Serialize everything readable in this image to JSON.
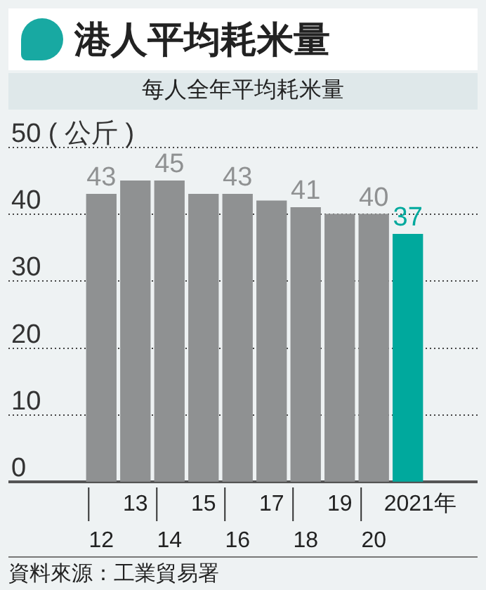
{
  "chart_data": {
    "type": "bar",
    "title": "港人平均耗米量",
    "subtitle": "每人全年平均耗米量",
    "categories": [
      "12",
      "13",
      "14",
      "15",
      "16",
      "17",
      "18",
      "19",
      "20",
      "2021年"
    ],
    "values": [
      43,
      45,
      45,
      43,
      43,
      42,
      41,
      40,
      40,
      37
    ],
    "colors": [
      "#8f9192",
      "#8f9192",
      "#8f9192",
      "#8f9192",
      "#8f9192",
      "#8f9192",
      "#8f9192",
      "#8f9192",
      "#8f9192",
      "#00a99d"
    ],
    "value_labels": [
      "43",
      null,
      "45",
      null,
      "43",
      null,
      "41",
      null,
      "40",
      "37"
    ],
    "ylim": [
      0,
      50
    ],
    "yticks": [
      0,
      10,
      20,
      30,
      40,
      {
        "value": 50,
        "label": "50 ( 公斤 )"
      }
    ],
    "grid": "y",
    "annotations": [
      "資料來源：工業貿易署"
    ]
  }
}
